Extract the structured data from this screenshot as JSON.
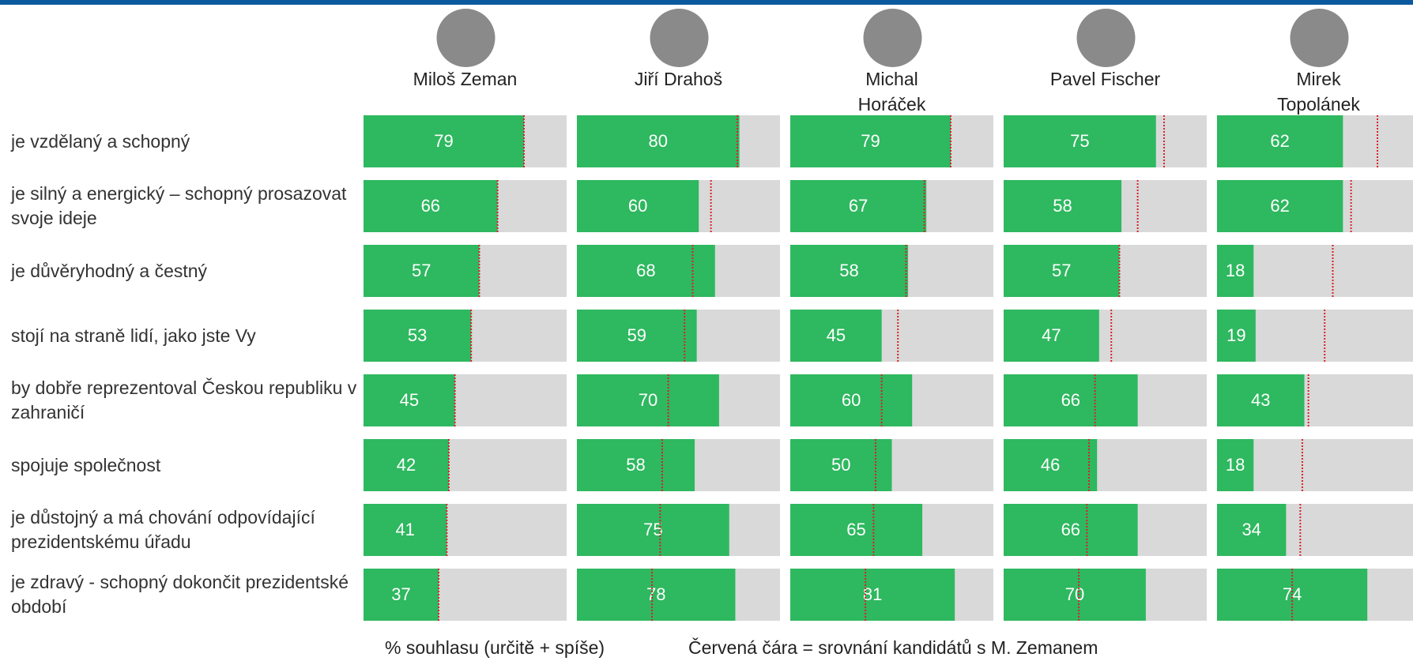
{
  "chart_data": {
    "type": "bar",
    "categories": [
      "je vzdělaný a schopný",
      "je silný a energický – schopný prosazovat svoje ideje",
      "je důvěryhodný a čestný",
      "stojí na straně lidí, jako jste Vy",
      "by dobře reprezentoval Českou republiku v zahraničí",
      "spojuje společnost",
      "je důstojný a má chování odpovídající prezidentskému úřadu",
      "je zdravý - schopný dokončit prezidentské období"
    ],
    "series": [
      {
        "name": "Miloš Zeman",
        "color": "#2eb85f",
        "values": [
          79,
          66,
          57,
          53,
          45,
          42,
          41,
          37
        ]
      },
      {
        "name": "Jiří Drahoš",
        "color": "#2eb85f",
        "values": [
          80,
          60,
          68,
          59,
          70,
          58,
          75,
          78
        ]
      },
      {
        "name": "Michal Horáček",
        "color": "#2eb85f",
        "values": [
          79,
          67,
          58,
          45,
          60,
          50,
          65,
          81
        ]
      },
      {
        "name": "Pavel Fischer",
        "color": "#2eb85f",
        "values": [
          75,
          58,
          57,
          47,
          66,
          46,
          66,
          70
        ]
      },
      {
        "name": "Mirek Topolánek",
        "color": "#2eb85f",
        "values": [
          62,
          62,
          18,
          19,
          43,
          18,
          34,
          74
        ]
      }
    ],
    "xlim": [
      0,
      100
    ],
    "background_color": "#d9d9d9",
    "reference_line_color": "#d9202a",
    "annotations": [
      "% souhlasu (určitě + spíše)",
      "Červená čára = srovnání kandidátů s M. Zemanem"
    ]
  }
}
